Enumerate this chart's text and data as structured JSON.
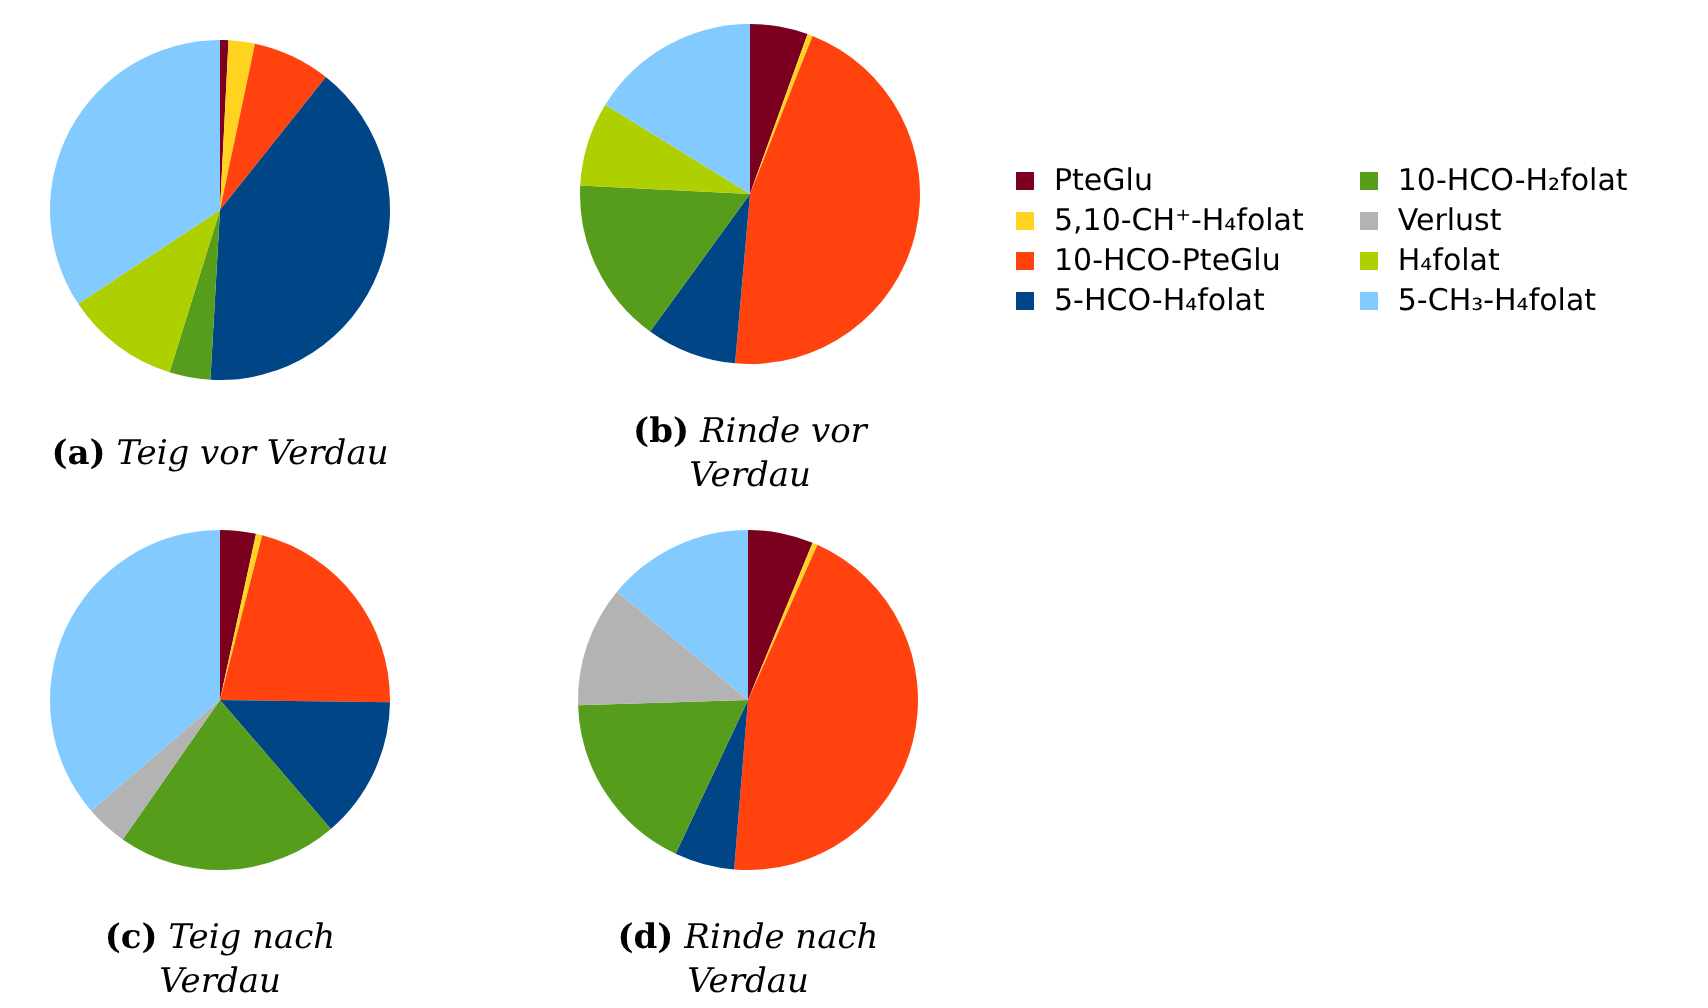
{
  "chart_data": [
    {
      "type": "pie",
      "title": "(a) Teig vor Verdau",
      "categories": [
        null,
        null,
        null,
        null,
        null,
        null,
        null,
        null
      ],
      "values": [
        0.8,
        2.5,
        7.4,
        40.2,
        3.9,
        0,
        10.9,
        34.3
      ],
      "colors": [
        "#7b0020",
        "#ffd320",
        "#ff420e",
        "#004586",
        "#579d1c",
        "#b3b3b3",
        "#aecf00",
        "#83caff"
      ]
    },
    {
      "type": "pie",
      "title": "(b) Rinde vor Verdau",
      "categories": [
        "PteGlu",
        "5,10-CH⁺-H₄folat",
        "10-HCO-PteGlu",
        "5-HCO-H₄folat",
        "10-HCO-H₂folat",
        "Verlust",
        "H₄folat",
        "5-CH₃-H₄folat"
      ],
      "values": [
        5.5,
        0.5,
        45.4,
        8.6,
        15.8,
        0,
        8.0,
        16.2
      ],
      "colors": [
        "#7b0020",
        "#ffd320",
        "#ff420e",
        "#004586",
        "#579d1c",
        "#b3b3b3",
        "#aecf00",
        "#83caff"
      ],
      "legend": "right"
    },
    {
      "type": "pie",
      "title": "(c) Teig nach Verdau",
      "categories": [
        null,
        null,
        null,
        null,
        null,
        null,
        null,
        null
      ],
      "values": [
        3.4,
        0.6,
        21.2,
        13.5,
        21.0,
        4.0,
        0,
        36.3
      ],
      "colors": [
        "#7b0020",
        "#ffd320",
        "#ff420e",
        "#004586",
        "#579d1c",
        "#b3b3b3",
        "#aecf00",
        "#83caff"
      ]
    },
    {
      "type": "pie",
      "title": "(d) Rinde nach Verdau",
      "categories": [
        null,
        null,
        null,
        null,
        null,
        null,
        null,
        null
      ],
      "values": [
        6.2,
        0.5,
        44.6,
        5.7,
        17.5,
        11.5,
        0,
        14.0
      ],
      "colors": [
        "#7b0020",
        "#ffd320",
        "#ff420e",
        "#004586",
        "#579d1c",
        "#b3b3b3",
        "#aecf00",
        "#83caff"
      ]
    }
  ]
}
